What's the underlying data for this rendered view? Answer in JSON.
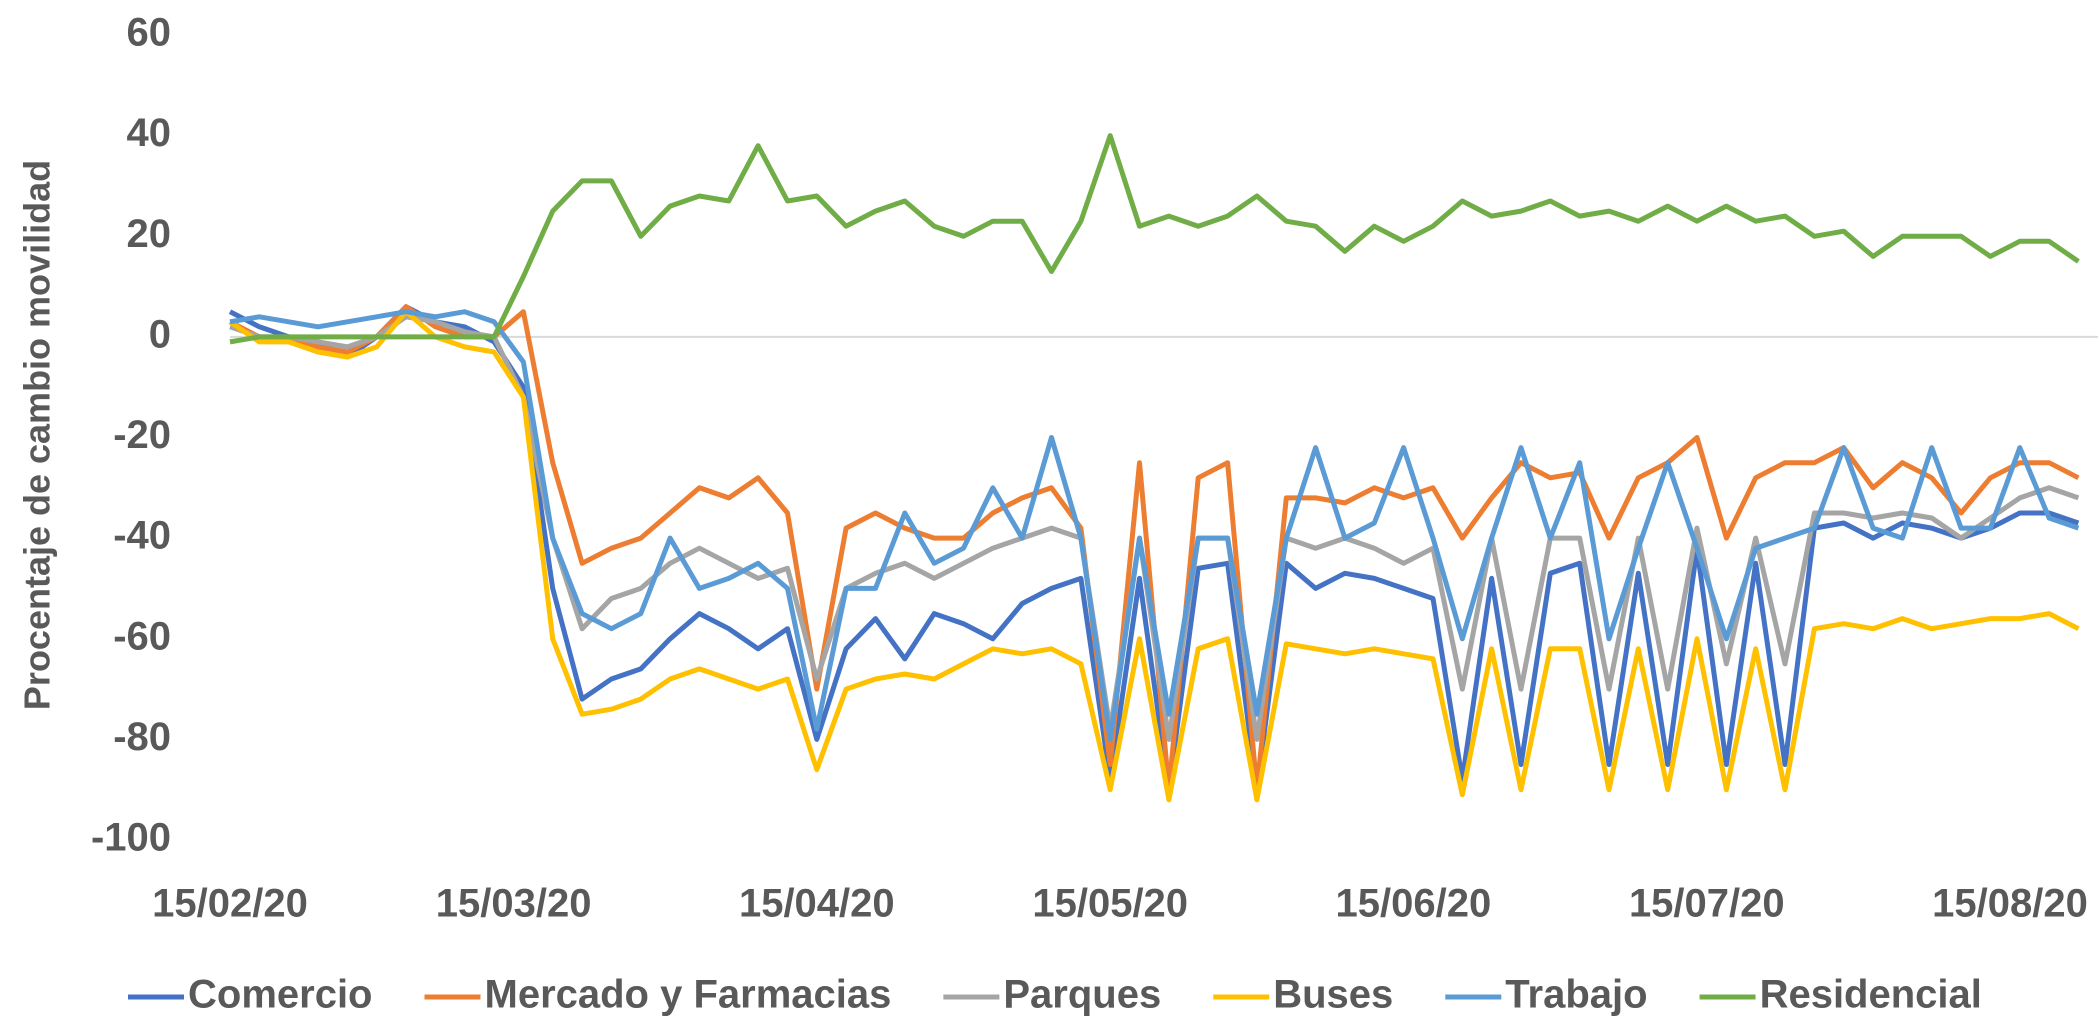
{
  "chart_data": {
    "type": "line",
    "y_label": "Procentaje de cambio movilidad",
    "x": [
      "15/02/20",
      "18/02/20",
      "21/02/20",
      "24/02/20",
      "27/02/20",
      "01/03/20",
      "04/03/20",
      "07/03/20",
      "10/03/20",
      "13/03/20",
      "16/03/20",
      "19/03/20",
      "22/03/20",
      "25/03/20",
      "28/03/20",
      "31/03/20",
      "03/04/20",
      "06/04/20",
      "09/04/20",
      "12/04/20",
      "15/04/20",
      "18/04/20",
      "21/04/20",
      "24/04/20",
      "27/04/20",
      "30/04/20",
      "03/05/20",
      "06/05/20",
      "09/05/20",
      "12/05/20",
      "15/05/20",
      "18/05/20",
      "21/05/20",
      "24/05/20",
      "27/05/20",
      "30/05/20",
      "02/06/20",
      "05/06/20",
      "08/06/20",
      "11/06/20",
      "14/06/20",
      "17/06/20",
      "20/06/20",
      "23/06/20",
      "26/06/20",
      "29/06/20",
      "02/07/20",
      "05/07/20",
      "08/07/20",
      "11/07/20",
      "14/07/20",
      "17/07/20",
      "20/07/20",
      "23/07/20",
      "26/07/20",
      "29/07/20",
      "01/08/20",
      "04/08/20",
      "07/08/20",
      "10/08/20",
      "13/08/20",
      "16/08/20",
      "19/08/20",
      "22/08/20"
    ],
    "series": [
      {
        "name": "Comercio",
        "color": "#4472c4",
        "values": [
          5,
          2,
          0,
          -1,
          -4,
          0,
          6,
          3,
          2,
          -1,
          -10,
          -50,
          -72,
          -68,
          -66,
          -60,
          -55,
          -58,
          -62,
          -58,
          -80,
          -62,
          -56,
          -64,
          -55,
          -57,
          -60,
          -53,
          -50,
          -48,
          -88,
          -48,
          -90,
          -46,
          -45,
          -90,
          -45,
          -50,
          -47,
          -48,
          -50,
          -52,
          -88,
          -48,
          -85,
          -47,
          -45,
          -85,
          -47,
          -85,
          -42,
          -85,
          -45,
          -85,
          -38,
          -37,
          -40,
          -37,
          -38,
          -40,
          -38,
          -35,
          -35,
          -37
        ]
      },
      {
        "name": "Mercado y Farmacias",
        "color": "#ed7d31",
        "values": [
          3,
          0,
          -1,
          -2,
          -3,
          0,
          6,
          2,
          0,
          0,
          5,
          -25,
          -45,
          -42,
          -40,
          -35,
          -30,
          -32,
          -28,
          -35,
          -70,
          -38,
          -35,
          -38,
          -40,
          -40,
          -35,
          -32,
          -30,
          -38,
          -85,
          -25,
          -90,
          -28,
          -25,
          -90,
          -32,
          -32,
          -33,
          -30,
          -32,
          -30,
          -40,
          -32,
          -25,
          -28,
          -27,
          -40,
          -28,
          -25,
          -20,
          -40,
          -28,
          -25,
          -25,
          -22,
          -30,
          -25,
          -28,
          -35,
          -28,
          -25,
          -25,
          -28
        ]
      },
      {
        "name": "Parques",
        "color": "#a5a5a5",
        "values": [
          2,
          0,
          0,
          -1,
          -2,
          0,
          4,
          3,
          1,
          0,
          -12,
          -40,
          -58,
          -52,
          -50,
          -45,
          -42,
          -45,
          -48,
          -46,
          -68,
          -50,
          -47,
          -45,
          -48,
          -45,
          -42,
          -40,
          -38,
          -40,
          -78,
          -40,
          -80,
          -40,
          -40,
          -80,
          -40,
          -42,
          -40,
          -42,
          -45,
          -42,
          -70,
          -40,
          -70,
          -40,
          -40,
          -70,
          -40,
          -70,
          -38,
          -65,
          -40,
          -65,
          -35,
          -35,
          -36,
          -35,
          -36,
          -40,
          -36,
          -32,
          -30,
          -32
        ]
      },
      {
        "name": "Buses",
        "color": "#ffc000",
        "values": [
          3,
          -1,
          -1,
          -3,
          -4,
          -2,
          5,
          0,
          -2,
          -3,
          -12,
          -60,
          -75,
          -74,
          -72,
          -68,
          -66,
          -68,
          -70,
          -68,
          -86,
          -70,
          -68,
          -67,
          -68,
          -65,
          -62,
          -63,
          -62,
          -65,
          -90,
          -60,
          -92,
          -62,
          -60,
          -92,
          -61,
          -62,
          -63,
          -62,
          -63,
          -64,
          -91,
          -62,
          -90,
          -62,
          -62,
          -90,
          -62,
          -90,
          -60,
          -90,
          -62,
          -90,
          -58,
          -57,
          -58,
          -56,
          -58,
          -57,
          -56,
          -56,
          -55,
          -58
        ]
      },
      {
        "name": "Trabajo",
        "color": "#5b9bd5",
        "values": [
          3,
          4,
          3,
          2,
          3,
          4,
          5,
          4,
          5,
          3,
          -5,
          -40,
          -55,
          -58,
          -55,
          -40,
          -50,
          -48,
          -45,
          -50,
          -78,
          -50,
          -50,
          -35,
          -45,
          -42,
          -30,
          -40,
          -20,
          -40,
          -80,
          -40,
          -75,
          -40,
          -40,
          -75,
          -40,
          -22,
          -40,
          -37,
          -22,
          -40,
          -60,
          -40,
          -22,
          -40,
          -25,
          -60,
          -42,
          -25,
          -42,
          -60,
          -42,
          -40,
          -38,
          -22,
          -38,
          -40,
          -22,
          -38,
          -38,
          -22,
          -36,
          -38
        ]
      },
      {
        "name": "Residencial",
        "color": "#70ad47",
        "values": [
          -1,
          0,
          0,
          0,
          0,
          0,
          0,
          0,
          0,
          0,
          12,
          25,
          31,
          31,
          20,
          26,
          28,
          27,
          38,
          27,
          28,
          22,
          25,
          27,
          22,
          20,
          23,
          23,
          13,
          23,
          40,
          22,
          24,
          22,
          24,
          28,
          23,
          22,
          17,
          22,
          19,
          22,
          27,
          24,
          25,
          27,
          24,
          25,
          23,
          26,
          23,
          26,
          23,
          24,
          20,
          21,
          16,
          20,
          20,
          20,
          16,
          19,
          19,
          15
        ]
      }
    ],
    "xlim": [
      "15/02/20",
      "24/08/20"
    ],
    "xticks": [
      "15/02/20",
      "15/03/20",
      "15/04/20",
      "15/05/20",
      "15/06/20",
      "15/07/20",
      "15/08/20"
    ],
    "ylim": [
      -100,
      60
    ],
    "yticks": [
      -100,
      -80,
      -60,
      -40,
      -20,
      0,
      20,
      40,
      60
    ],
    "zero_line": true,
    "legend": "bottom"
  }
}
